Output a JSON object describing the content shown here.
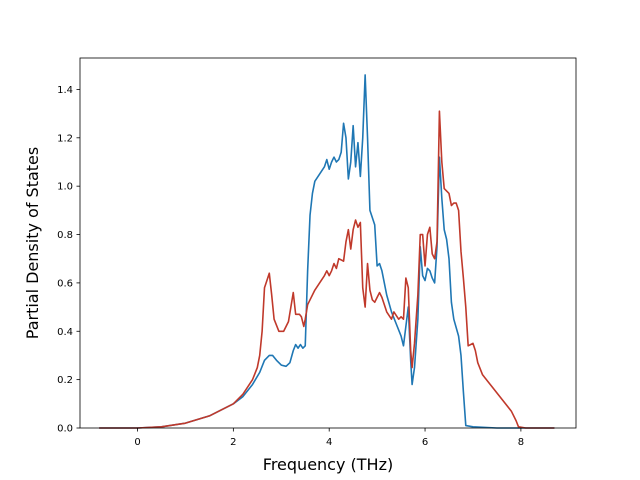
{
  "chart_data": {
    "type": "line",
    "xlabel": "Frequency (THz)",
    "ylabel": "Partial Density of States",
    "xlim": [
      -1.2,
      9.15
    ],
    "ylim": [
      0.0,
      1.53
    ],
    "xticks": [
      0,
      2,
      4,
      6,
      8
    ],
    "xtick_labels": [
      "0",
      "2",
      "4",
      "6",
      "8"
    ],
    "yticks": [
      0.0,
      0.2,
      0.4,
      0.6,
      0.8,
      1.0,
      1.2,
      1.4
    ],
    "ytick_labels": [
      "0.0",
      "0.2",
      "0.4",
      "0.6",
      "0.8",
      "1.0",
      "1.2",
      "1.4"
    ],
    "grid": false,
    "series": [
      {
        "color": "#1f77b4",
        "points": [
          [
            -0.8,
            0.0
          ],
          [
            0.0,
            0.0
          ],
          [
            0.5,
            0.005
          ],
          [
            1.0,
            0.02
          ],
          [
            1.5,
            0.05
          ],
          [
            2.0,
            0.1
          ],
          [
            2.2,
            0.13
          ],
          [
            2.4,
            0.18
          ],
          [
            2.55,
            0.23
          ],
          [
            2.65,
            0.28
          ],
          [
            2.75,
            0.3
          ],
          [
            2.82,
            0.3
          ],
          [
            2.9,
            0.28
          ],
          [
            3.0,
            0.26
          ],
          [
            3.1,
            0.255
          ],
          [
            3.18,
            0.27
          ],
          [
            3.25,
            0.32
          ],
          [
            3.3,
            0.345
          ],
          [
            3.35,
            0.33
          ],
          [
            3.4,
            0.345
          ],
          [
            3.45,
            0.33
          ],
          [
            3.5,
            0.34
          ],
          [
            3.55,
            0.65
          ],
          [
            3.6,
            0.88
          ],
          [
            3.65,
            0.97
          ],
          [
            3.7,
            1.02
          ],
          [
            3.8,
            1.05
          ],
          [
            3.9,
            1.08
          ],
          [
            3.95,
            1.11
          ],
          [
            4.0,
            1.07
          ],
          [
            4.05,
            1.1
          ],
          [
            4.1,
            1.12
          ],
          [
            4.15,
            1.1
          ],
          [
            4.2,
            1.11
          ],
          [
            4.25,
            1.14
          ],
          [
            4.3,
            1.26
          ],
          [
            4.35,
            1.2
          ],
          [
            4.4,
            1.03
          ],
          [
            4.45,
            1.1
          ],
          [
            4.5,
            1.25
          ],
          [
            4.55,
            1.08
          ],
          [
            4.6,
            1.18
          ],
          [
            4.65,
            1.04
          ],
          [
            4.7,
            1.2
          ],
          [
            4.75,
            1.46
          ],
          [
            4.8,
            1.2
          ],
          [
            4.85,
            0.9
          ],
          [
            4.9,
            0.87
          ],
          [
            4.95,
            0.84
          ],
          [
            5.0,
            0.67
          ],
          [
            5.05,
            0.68
          ],
          [
            5.1,
            0.65
          ],
          [
            5.2,
            0.55
          ],
          [
            5.3,
            0.48
          ],
          [
            5.4,
            0.43
          ],
          [
            5.5,
            0.38
          ],
          [
            5.55,
            0.34
          ],
          [
            5.6,
            0.42
          ],
          [
            5.65,
            0.5
          ],
          [
            5.7,
            0.28
          ],
          [
            5.73,
            0.18
          ],
          [
            5.78,
            0.25
          ],
          [
            5.85,
            0.45
          ],
          [
            5.9,
            0.75
          ],
          [
            5.95,
            0.63
          ],
          [
            6.0,
            0.61
          ],
          [
            6.05,
            0.66
          ],
          [
            6.1,
            0.65
          ],
          [
            6.15,
            0.62
          ],
          [
            6.2,
            0.6
          ],
          [
            6.25,
            0.75
          ],
          [
            6.3,
            1.12
          ],
          [
            6.35,
            0.95
          ],
          [
            6.4,
            0.82
          ],
          [
            6.45,
            0.78
          ],
          [
            6.5,
            0.7
          ],
          [
            6.55,
            0.52
          ],
          [
            6.6,
            0.45
          ],
          [
            6.7,
            0.38
          ],
          [
            6.75,
            0.3
          ],
          [
            6.8,
            0.15
          ],
          [
            6.85,
            0.01
          ],
          [
            7.0,
            0.005
          ],
          [
            7.5,
            0.0
          ],
          [
            8.7,
            0.0
          ]
        ]
      },
      {
        "color": "#c0392b",
        "points": [
          [
            -0.8,
            0.0
          ],
          [
            0.0,
            0.0
          ],
          [
            0.5,
            0.005
          ],
          [
            1.0,
            0.02
          ],
          [
            1.5,
            0.05
          ],
          [
            2.0,
            0.1
          ],
          [
            2.2,
            0.14
          ],
          [
            2.4,
            0.2
          ],
          [
            2.5,
            0.25
          ],
          [
            2.55,
            0.3
          ],
          [
            2.6,
            0.4
          ],
          [
            2.65,
            0.58
          ],
          [
            2.7,
            0.61
          ],
          [
            2.75,
            0.64
          ],
          [
            2.8,
            0.55
          ],
          [
            2.85,
            0.45
          ],
          [
            2.95,
            0.4
          ],
          [
            3.05,
            0.4
          ],
          [
            3.15,
            0.44
          ],
          [
            3.2,
            0.5
          ],
          [
            3.25,
            0.56
          ],
          [
            3.3,
            0.47
          ],
          [
            3.38,
            0.47
          ],
          [
            3.42,
            0.46
          ],
          [
            3.47,
            0.42
          ],
          [
            3.5,
            0.45
          ],
          [
            3.55,
            0.51
          ],
          [
            3.6,
            0.53
          ],
          [
            3.7,
            0.57
          ],
          [
            3.8,
            0.6
          ],
          [
            3.9,
            0.63
          ],
          [
            3.95,
            0.65
          ],
          [
            4.0,
            0.63
          ],
          [
            4.05,
            0.65
          ],
          [
            4.1,
            0.68
          ],
          [
            4.15,
            0.66
          ],
          [
            4.2,
            0.7
          ],
          [
            4.3,
            0.69
          ],
          [
            4.35,
            0.77
          ],
          [
            4.4,
            0.82
          ],
          [
            4.45,
            0.74
          ],
          [
            4.5,
            0.82
          ],
          [
            4.55,
            0.86
          ],
          [
            4.6,
            0.83
          ],
          [
            4.65,
            0.85
          ],
          [
            4.7,
            0.58
          ],
          [
            4.75,
            0.5
          ],
          [
            4.8,
            0.68
          ],
          [
            4.85,
            0.57
          ],
          [
            4.9,
            0.53
          ],
          [
            4.95,
            0.52
          ],
          [
            5.0,
            0.54
          ],
          [
            5.05,
            0.56
          ],
          [
            5.1,
            0.54
          ],
          [
            5.2,
            0.48
          ],
          [
            5.3,
            0.45
          ],
          [
            5.35,
            0.48
          ],
          [
            5.45,
            0.45
          ],
          [
            5.5,
            0.46
          ],
          [
            5.55,
            0.45
          ],
          [
            5.6,
            0.62
          ],
          [
            5.65,
            0.58
          ],
          [
            5.7,
            0.32
          ],
          [
            5.73,
            0.25
          ],
          [
            5.78,
            0.35
          ],
          [
            5.85,
            0.55
          ],
          [
            5.9,
            0.8
          ],
          [
            5.95,
            0.8
          ],
          [
            6.0,
            0.67
          ],
          [
            6.05,
            0.8
          ],
          [
            6.1,
            0.83
          ],
          [
            6.15,
            0.72
          ],
          [
            6.2,
            0.7
          ],
          [
            6.25,
            0.77
          ],
          [
            6.3,
            1.31
          ],
          [
            6.35,
            1.1
          ],
          [
            6.4,
            0.99
          ],
          [
            6.5,
            0.97
          ],
          [
            6.55,
            0.92
          ],
          [
            6.6,
            0.93
          ],
          [
            6.65,
            0.93
          ],
          [
            6.7,
            0.9
          ],
          [
            6.75,
            0.73
          ],
          [
            6.8,
            0.62
          ],
          [
            6.85,
            0.5
          ],
          [
            6.9,
            0.34
          ],
          [
            7.0,
            0.35
          ],
          [
            7.05,
            0.32
          ],
          [
            7.1,
            0.27
          ],
          [
            7.2,
            0.22
          ],
          [
            7.4,
            0.17
          ],
          [
            7.6,
            0.12
          ],
          [
            7.8,
            0.07
          ],
          [
            7.9,
            0.03
          ],
          [
            7.95,
            0.005
          ],
          [
            8.1,
            0.0
          ],
          [
            8.7,
            0.0
          ]
        ]
      }
    ]
  }
}
